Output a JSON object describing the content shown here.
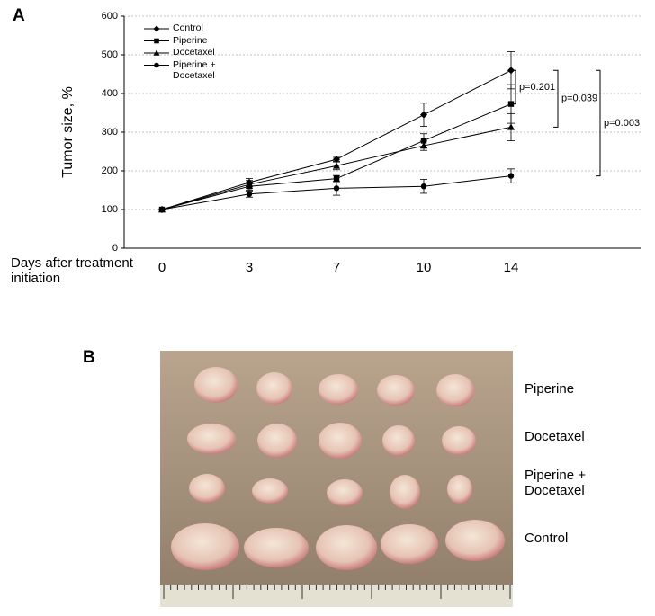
{
  "panel_labels": [
    "A",
    "B"
  ],
  "chart_data": {
    "type": "line",
    "ylabel": "Tumor size, %",
    "xlabel": "Days after treatment initiation",
    "categories": [
      "0",
      "3",
      "7",
      "10",
      "14"
    ],
    "ylim": [
      0,
      600
    ],
    "yticks": [
      0,
      100,
      200,
      300,
      400,
      500,
      600
    ],
    "grid": true,
    "series": [
      {
        "name": "Control",
        "color": "#000000",
        "marker": "diamond",
        "values": [
          100,
          170,
          230,
          345,
          460
        ],
        "errors": [
          0,
          10,
          5,
          30,
          48
        ]
      },
      {
        "name": "Piperine",
        "color": "#000000",
        "marker": "square",
        "values": [
          100,
          160,
          180,
          278,
          373
        ],
        "errors": [
          0,
          10,
          8,
          18,
          50
        ]
      },
      {
        "name": "Docetaxel",
        "color": "#000000",
        "marker": "triangle",
        "values": [
          100,
          165,
          213,
          265,
          313
        ],
        "errors": [
          0,
          10,
          10,
          12,
          35
        ]
      },
      {
        "name": "Piperine + Docetaxel",
        "color": "#000000",
        "marker": "circle",
        "values": [
          100,
          140,
          155,
          160,
          187
        ],
        "errors": [
          0,
          8,
          18,
          18,
          18
        ]
      }
    ],
    "annotations": [
      "p=0.201",
      "p=0.039",
      "p=0.003"
    ]
  },
  "photo": {
    "row_labels": [
      "Piperine",
      "Docetaxel",
      "Piperine + Docetaxel",
      "Control"
    ]
  }
}
